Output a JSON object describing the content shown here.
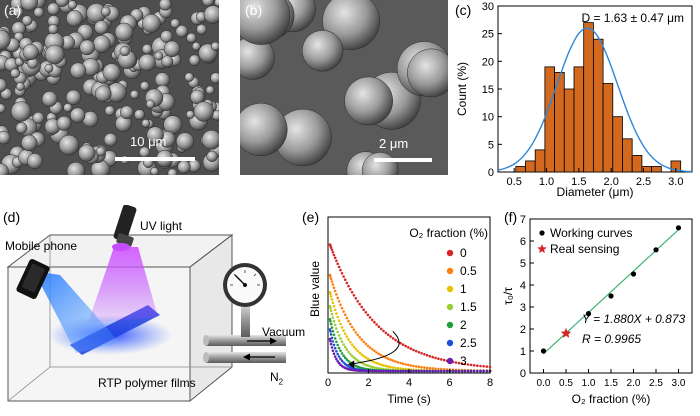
{
  "panels": {
    "a": {
      "label": "(a)",
      "scale_bar": "10 μm"
    },
    "b": {
      "label": "(b)",
      "scale_bar": "2 μm"
    },
    "c": {
      "label": "(c)"
    },
    "d": {
      "label": "(d)",
      "texts": {
        "phone": "Mobile phone",
        "uv": "UV light",
        "vacuum": "Vacuum",
        "n2": "N",
        "n2_sub": "2",
        "films": "RTP polymer films"
      }
    },
    "e": {
      "label": "(e)"
    },
    "f": {
      "label": "(f)"
    }
  },
  "chart_data": [
    {
      "type": "bar",
      "panel": "c",
      "annotation": "D = 1.63 ± 0.47 μm",
      "xlabel": "Diameter (μm)",
      "ylabel": "Count (%)",
      "xlim": [
        0.25,
        3.25
      ],
      "ylim": [
        0,
        30
      ],
      "xticks": [
        "0.5",
        "1.0",
        "1.5",
        "2.0",
        "2.5",
        "3.0"
      ],
      "yticks": [
        "0",
        "5",
        "10",
        "15",
        "20",
        "25",
        "30"
      ],
      "bin_width": 0.15,
      "bin_centers": [
        0.6,
        0.75,
        0.9,
        1.05,
        1.2,
        1.35,
        1.5,
        1.65,
        1.8,
        1.95,
        2.1,
        2.25,
        2.4,
        2.55,
        2.7,
        2.85,
        3.0
      ],
      "values": [
        1,
        2,
        4,
        19,
        18,
        15,
        19,
        27,
        24,
        16,
        10,
        6,
        3,
        1,
        1,
        0,
        2
      ],
      "fit": {
        "type": "gaussian",
        "mean": 1.63,
        "sigma": 0.47,
        "peak": 26,
        "color": "#2f86d6"
      },
      "bar_color": "#d2691e"
    },
    {
      "type": "scatter",
      "panel": "e",
      "xlabel": "Time (s)",
      "ylabel": "Blue value",
      "xlim": [
        0,
        8
      ],
      "xticks": [
        "0",
        "2",
        "4",
        "6",
        "8"
      ],
      "legend_title": "O₂ fraction (%)",
      "legend_position": "top-right",
      "series": [
        {
          "name": "0",
          "color": "#d62728",
          "peak": 1.0,
          "tau": 2.3
        },
        {
          "name": "0.5",
          "color": "#ff7f0e",
          "peak": 0.78,
          "tau": 1.4
        },
        {
          "name": "1",
          "color": "#e6c200",
          "peak": 0.66,
          "tau": 1.0
        },
        {
          "name": "1.5",
          "color": "#9acd32",
          "peak": 0.56,
          "tau": 0.75
        },
        {
          "name": "2",
          "color": "#1f9e3a",
          "peak": 0.47,
          "tau": 0.55
        },
        {
          "name": "2.5",
          "color": "#1f4fd6",
          "peak": 0.4,
          "tau": 0.42
        },
        {
          "name": "3",
          "color": "#6a1fb0",
          "peak": 0.33,
          "tau": 0.32
        }
      ]
    },
    {
      "type": "scatter",
      "panel": "f",
      "xlabel": "O₂ fraction (%)",
      "ylabel": "τ₀/τ",
      "xlim": [
        -0.3,
        3.3
      ],
      "ylim": [
        0,
        7
      ],
      "xticks": [
        "0.0",
        "0.5",
        "1.0",
        "1.5",
        "2.0",
        "2.5",
        "3.0"
      ],
      "yticks": [
        "0",
        "1",
        "2",
        "3",
        "4",
        "5",
        "6",
        "7"
      ],
      "legend": [
        "Working curves",
        "Real sensing"
      ],
      "equation": "Y = 1.880X + 0.873",
      "r_value": "R = 0.9965",
      "working_points": [
        [
          0,
          1.0
        ],
        [
          1.0,
          2.7
        ],
        [
          1.5,
          3.5
        ],
        [
          2.0,
          4.5
        ],
        [
          2.5,
          5.6
        ],
        [
          3.0,
          6.6
        ]
      ],
      "real_point": [
        0.5,
        1.8
      ],
      "fit_line": {
        "slope": 1.88,
        "intercept": 0.873,
        "color": "#3cb371"
      },
      "point_color": "#000000",
      "star_color": "#d62728"
    }
  ]
}
